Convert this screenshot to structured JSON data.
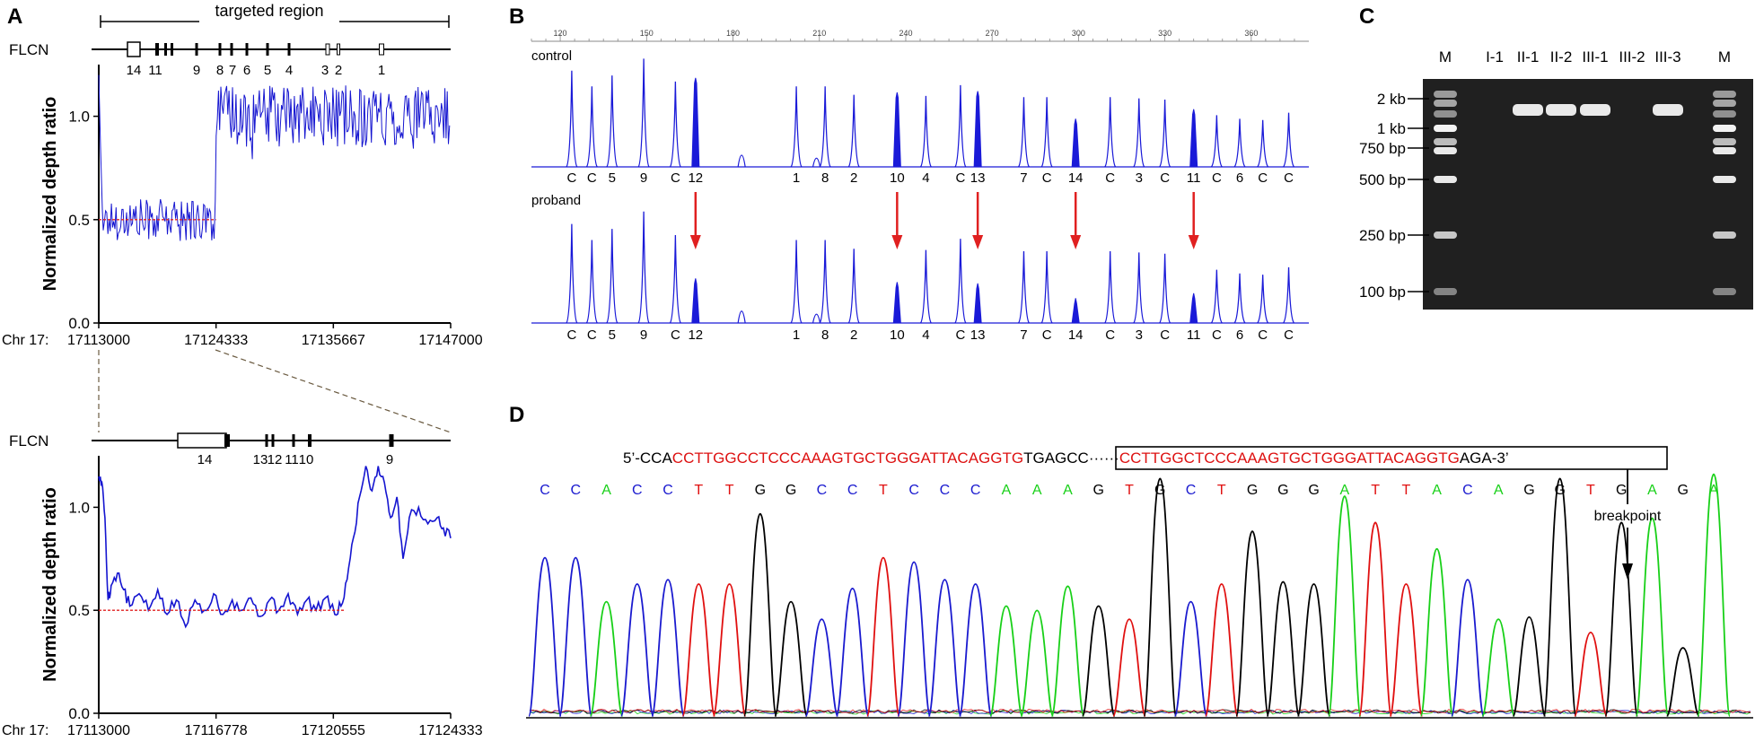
{
  "panels": {
    "a": {
      "letter": "A",
      "region_label": "targeted region",
      "gene_top": "FLCN",
      "gene_bottom": "FLCN",
      "ylabel_top": "Normalized depth ratio",
      "ylabel_bottom": "Normalized depth ratio"
    },
    "b": {
      "letter": "B",
      "control_label": "control",
      "proband_label": "proband"
    },
    "c": {
      "letter": "C"
    },
    "d": {
      "letter": "D"
    }
  },
  "chart_data": [
    {
      "id": "depth_top",
      "type": "line",
      "xlabel": "Chr 17:",
      "ylabel": "Normalized depth ratio",
      "xlim": [
        17113000,
        17147000
      ],
      "ylim": [
        0,
        1.25
      ],
      "x_ticks": [
        "17113000",
        "17124333",
        "17135667",
        "17147000"
      ],
      "y_ticks": [
        "0.0",
        "0.5",
        "1.0"
      ],
      "exons": [
        "14",
        "11",
        "9",
        "8",
        "7",
        "6",
        "5",
        "4",
        "3",
        "2",
        "1"
      ],
      "reference_line": 0.5,
      "series": [
        {
          "x": [
            17113000,
            17124333
          ],
          "mean": 0.5,
          "amplitude": 0.1
        },
        {
          "x": [
            17124333,
            17147000
          ],
          "mean": 1.0,
          "amplitude": 0.15
        }
      ]
    },
    {
      "id": "depth_bottom",
      "type": "line",
      "xlabel": "Chr 17:",
      "ylabel": "Normalized depth ratio",
      "xlim": [
        17113000,
        17124333
      ],
      "ylim": [
        0,
        1.25
      ],
      "x_ticks": [
        "17113000",
        "17116778",
        "17120555",
        "17124333"
      ],
      "y_ticks": [
        "0.0",
        "0.5",
        "1.0"
      ],
      "exons": [
        "14",
        "13",
        "12",
        "11",
        "10",
        "9"
      ],
      "reference_line": 0.5,
      "points": [
        [
          17113000,
          1.15
        ],
        [
          17113100,
          1.12
        ],
        [
          17113200,
          0.95
        ],
        [
          17113300,
          0.55
        ],
        [
          17113400,
          0.62
        ],
        [
          17113600,
          0.68
        ],
        [
          17113800,
          0.6
        ],
        [
          17114000,
          0.52
        ],
        [
          17114300,
          0.58
        ],
        [
          17114600,
          0.5
        ],
        [
          17114900,
          0.6
        ],
        [
          17115200,
          0.48
        ],
        [
          17115500,
          0.55
        ],
        [
          17115800,
          0.42
        ],
        [
          17116100,
          0.55
        ],
        [
          17116400,
          0.5
        ],
        [
          17116700,
          0.58
        ],
        [
          17117000,
          0.48
        ],
        [
          17117300,
          0.55
        ],
        [
          17117600,
          0.5
        ],
        [
          17117900,
          0.56
        ],
        [
          17118200,
          0.47
        ],
        [
          17118500,
          0.55
        ],
        [
          17118800,
          0.5
        ],
        [
          17119100,
          0.58
        ],
        [
          17119400,
          0.48
        ],
        [
          17119700,
          0.55
        ],
        [
          17120000,
          0.5
        ],
        [
          17120300,
          0.56
        ],
        [
          17120600,
          0.48
        ],
        [
          17120800,
          0.52
        ],
        [
          17121000,
          0.65
        ],
        [
          17121200,
          0.85
        ],
        [
          17121400,
          1.05
        ],
        [
          17121600,
          1.2
        ],
        [
          17121800,
          1.08
        ],
        [
          17122000,
          1.2
        ],
        [
          17122200,
          1.12
        ],
        [
          17122400,
          0.95
        ],
        [
          17122600,
          1.05
        ],
        [
          17122800,
          0.75
        ],
        [
          17123000,
          0.95
        ],
        [
          17123300,
          1.0
        ],
        [
          17123600,
          0.92
        ],
        [
          17123900,
          0.95
        ],
        [
          17124100,
          0.9
        ],
        [
          17124333,
          0.85
        ]
      ]
    },
    {
      "id": "mlpa",
      "type": "bar",
      "x_ticks": [
        "120",
        "150",
        "180",
        "210",
        "240",
        "270",
        "300",
        "330",
        "360"
      ],
      "xlim": [
        110,
        370
      ],
      "ylim": [
        0,
        1
      ],
      "categories": [
        "C",
        "C",
        "5",
        "9",
        "C",
        "12",
        "1",
        "8",
        "2",
        "10",
        "4",
        "C",
        "13",
        "7",
        "C",
        "14",
        "C",
        "3",
        "C",
        "11",
        "C",
        "6",
        "C",
        "C"
      ],
      "sizes": [
        124,
        131,
        138,
        149,
        160,
        167,
        202,
        212,
        222,
        237,
        247,
        259,
        265,
        281,
        289,
        299,
        311,
        321,
        330,
        340,
        348,
        356,
        364,
        373
      ],
      "series": [
        {
          "name": "control",
          "values": [
            0.8,
            0.67,
            0.76,
            0.9,
            0.71,
            0.74,
            0.67,
            0.67,
            0.6,
            0.62,
            0.59,
            0.68,
            0.63,
            0.58,
            0.58,
            0.4,
            0.58,
            0.57,
            0.56,
            0.48,
            0.43,
            0.4,
            0.39,
            0.45
          ]
        },
        {
          "name": "proband",
          "values": [
            0.8,
            0.67,
            0.76,
            0.9,
            0.71,
            0.36,
            0.67,
            0.67,
            0.6,
            0.33,
            0.59,
            0.68,
            0.32,
            0.58,
            0.58,
            0.2,
            0.58,
            0.57,
            0.56,
            0.24,
            0.43,
            0.4,
            0.39,
            0.45
          ]
        }
      ],
      "arrowed_categories": [
        "12",
        "10",
        "13",
        "14",
        "11"
      ]
    },
    {
      "id": "gel",
      "type": "table",
      "columns": [
        "M",
        "I-1",
        "II-1",
        "II-2",
        "III-1",
        "III-2",
        "III-3",
        "M"
      ],
      "marker_labels": [
        "2 kb",
        "1 kb",
        "750 bp",
        "500 bp",
        "250 bp",
        "100 bp"
      ],
      "marker_sizes_bp": [
        2000,
        1000,
        750,
        500,
        250,
        100
      ],
      "product_lanes": [
        "II-1",
        "II-2",
        "III-1",
        "III-3"
      ]
    },
    {
      "id": "chromatogram",
      "type": "line",
      "seq_prefix": "5’-CCA",
      "seq_red1": "CCTTGGCCTCCCAAAGTGCTGGGATTACAGGTG",
      "seq_box_black": "TGAGCC",
      "seq_dots": "······",
      "seq_box_red": "CCTTGGCTCCCAAAGTGCTGGGATTACAGGTG",
      "seq_suffix": "AGA-3’",
      "bases": [
        "C",
        "C",
        "A",
        "C",
        "C",
        "T",
        "T",
        "G",
        "G",
        "C",
        "C",
        "T",
        "C",
        "C",
        "C",
        "A",
        "A",
        "A",
        "G",
        "T",
        "G",
        "C",
        "T",
        "G",
        "G",
        "G",
        "A",
        "T",
        "T",
        "A",
        "C",
        "A",
        "G",
        "G",
        "T",
        "G",
        "A",
        "G",
        "A"
      ],
      "peak_heights": [
        0.72,
        0.72,
        0.52,
        0.6,
        0.62,
        0.6,
        0.6,
        0.92,
        0.52,
        0.44,
        0.58,
        0.72,
        0.7,
        0.62,
        0.6,
        0.5,
        0.48,
        0.59,
        0.5,
        0.44,
        1.08,
        0.52,
        0.6,
        0.84,
        0.61,
        0.6,
        1.0,
        0.88,
        0.6,
        0.76,
        0.62,
        0.44,
        0.45,
        1.08,
        0.38,
        0.88,
        0.9,
        0.31,
        1.1
      ],
      "breakpoint_label": "breakpoint"
    }
  ],
  "colors": {
    "depth": "#1515d0",
    "reference": "#e02020",
    "mlpa": "#1a1ad8",
    "arrow": "#e02020",
    "seq_red": "#dd1111",
    "base_A": "#18d018",
    "base_C": "#1a1acf",
    "base_G": "#000000",
    "base_T": "#e01010",
    "gel_bg": "#202020"
  }
}
